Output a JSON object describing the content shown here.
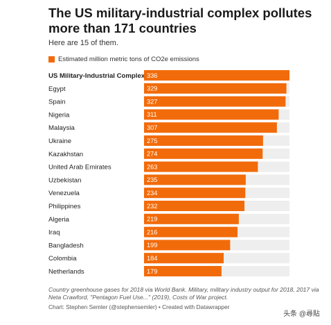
{
  "header": {
    "title": "The US military-industrial complex pollutes more than 171 countries",
    "subtitle": "Here are 15 of them."
  },
  "legend": {
    "label": "Estimated million metric tons of CO2e emissions",
    "color": "#f26b0a"
  },
  "chart_data": {
    "type": "bar",
    "orientation": "horizontal",
    "categories": [
      "US Military-Industrial Complex",
      "Egypt",
      "Spain",
      "Nigeria",
      "Malaysia",
      "Ukraine",
      "Kazakhstan",
      "United Arab Emirates",
      "Uzbekistan",
      "Venezuela",
      "Philippines",
      "Algeria",
      "Iraq",
      "Bangladesh",
      "Colombia",
      "Netherlands"
    ],
    "series": [
      {
        "name": "Estimated million metric tons of CO2e emissions",
        "values": [
          336,
          329,
          327,
          311,
          307,
          275,
          274,
          263,
          235,
          234,
          232,
          219,
          216,
          199,
          184,
          179
        ]
      }
    ],
    "xlim": [
      0,
      336
    ],
    "bar_color": "#f26b0a",
    "track_color": "#eeeeee",
    "value_labels": [
      "336",
      "329",
      "327",
      "311",
      "307",
      "275",
      "274",
      "263",
      "235",
      "234",
      "232",
      "219",
      "216",
      "199",
      "184",
      "179"
    ]
  },
  "footer": {
    "notes": "Country greenhouse gases for 2018 via World Bank. Military, military industry output for 2018, 2017 via Neta Crawford, \"Pentagon Fuel Use...\" (2019), Costs of War project.",
    "credit": "Chart: Stephen Semler (@stephensemler) • Created with Datawrapper",
    "watermark": "头条 @尋貼"
  }
}
